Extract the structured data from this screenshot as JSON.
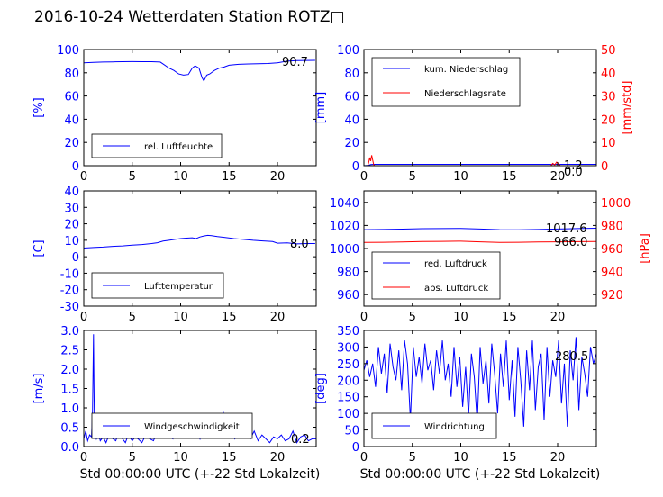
{
  "title": "2016-10-24 Wetterdaten Station ROTZ□",
  "colors": {
    "primary": "#0000ff",
    "secondary": "#ff0000",
    "axis": "#000000"
  },
  "xlabel": "Std 00:00:00 UTC (+-22 Std Lokalzeit)",
  "chart_data": [
    {
      "type": "line",
      "ylabel": "[%]",
      "xlim": [
        0,
        24
      ],
      "ylim": [
        0,
        100
      ],
      "xticks": [
        0,
        5,
        10,
        15,
        20
      ],
      "yticks": [
        0,
        20,
        40,
        60,
        80,
        100
      ],
      "grid": false,
      "legend": "lower-left",
      "last_value_label": "90.7",
      "series": [
        {
          "name": "rel. Luftfeuchte",
          "color": "#0000ff",
          "x": [
            0,
            1,
            2,
            3,
            4,
            5,
            6,
            7,
            7.9,
            8.3,
            8.8,
            9.3,
            9.8,
            10.3,
            10.8,
            11.2,
            11.5,
            11.9,
            12.2,
            12.4,
            12.7,
            13,
            13.5,
            14,
            14.5,
            15,
            16,
            17,
            18,
            19,
            20,
            21,
            22,
            23,
            23.9
          ],
          "values": [
            88.5,
            89,
            89.2,
            89.4,
            89.5,
            89.6,
            89.5,
            89.5,
            89.2,
            87,
            84,
            82,
            79,
            78,
            78.5,
            84,
            86,
            84,
            76,
            73,
            78,
            79,
            82,
            84,
            85,
            86.5,
            87.3,
            87.6,
            87.8,
            88,
            88.5,
            90,
            90.5,
            90.6,
            90.7
          ]
        }
      ]
    },
    {
      "type": "line",
      "ylabel": "[mm]",
      "ylabel_right": "[mm/std]",
      "xlim": [
        0,
        24
      ],
      "ylim": [
        0,
        100
      ],
      "ylim_right": [
        0,
        50
      ],
      "xticks": [
        0,
        5,
        10,
        15,
        20
      ],
      "yticks": [
        0,
        20,
        40,
        60,
        80,
        100
      ],
      "yticks_right": [
        0,
        10,
        20,
        30,
        40,
        50
      ],
      "grid": false,
      "legend": "upper-left",
      "last_value_labels": [
        "1.2",
        "0.0"
      ],
      "series": [
        {
          "name": "kum. Niederschlag",
          "color": "#0000ff",
          "axis": "left",
          "x": [
            0,
            0.5,
            0.7,
            1.0,
            5,
            10,
            15,
            19.5,
            20,
            24
          ],
          "values": [
            0,
            0.3,
            1.0,
            1.2,
            1.2,
            1.2,
            1.2,
            1.2,
            1.2,
            1.2
          ]
        },
        {
          "name": "Niederschlagsrate",
          "color": "#ff0000",
          "axis": "right",
          "x": [
            0,
            0.4,
            0.5,
            0.6,
            0.7,
            0.8,
            0.9,
            1.0,
            1.1,
            1.2,
            5,
            10,
            15,
            19.3,
            19.5,
            19.7,
            19.9,
            20.1,
            20.3,
            24
          ],
          "values": [
            0,
            0,
            1.5,
            3.5,
            2,
            4.5,
            2.5,
            0.5,
            0,
            0,
            0,
            0,
            0,
            0,
            1,
            0.4,
            1.5,
            0.6,
            0,
            0
          ]
        }
      ]
    },
    {
      "type": "line",
      "ylabel": "[C]",
      "xlim": [
        0,
        24
      ],
      "ylim": [
        -30,
        40
      ],
      "xticks": [
        0,
        5,
        10,
        15,
        20
      ],
      "yticks": [
        -30,
        -20,
        -10,
        0,
        10,
        20,
        30,
        40
      ],
      "grid": false,
      "legend": "lower-left",
      "last_value_label": "8.0",
      "series": [
        {
          "name": "Lufttemperatur",
          "color": "#0000ff",
          "x": [
            0,
            1,
            2,
            3,
            4,
            5,
            6,
            7,
            7.6,
            8.2,
            8.8,
            9.4,
            10,
            10.6,
            11.2,
            11.6,
            12,
            12.4,
            12.8,
            13.2,
            13.8,
            14.5,
            15.5,
            16.5,
            17.5,
            18.5,
            19.5,
            20,
            21,
            22,
            23,
            23.9
          ],
          "values": [
            5.3,
            5.6,
            5.9,
            6.3,
            6.6,
            7,
            7.4,
            8,
            8.5,
            9.5,
            10,
            10.5,
            11,
            11.3,
            11.5,
            11,
            12,
            12.6,
            13,
            12.8,
            12.3,
            11.8,
            11,
            10.5,
            10,
            9.6,
            9.2,
            8.2,
            8.4,
            7.8,
            8.0,
            8.0
          ]
        }
      ]
    },
    {
      "type": "line",
      "ylabel": "[hPa]",
      "xlim": [
        0,
        24
      ],
      "ylim": [
        950,
        1050
      ],
      "ylim_right": [
        910,
        1010
      ],
      "xticks": [
        0,
        5,
        10,
        15,
        20
      ],
      "yticks": [
        960,
        980,
        1000,
        1020,
        1040
      ],
      "yticks_right": [
        920,
        940,
        960,
        980,
        1000
      ],
      "grid": false,
      "legend": "lower-left",
      "last_value_labels": [
        "1017.6",
        "966.0"
      ],
      "series": [
        {
          "name": "red. Luftdruck",
          "color": "#0000ff",
          "axis": "left",
          "x": [
            0,
            2,
            4,
            6,
            8,
            10,
            12,
            14,
            16,
            18,
            20,
            22,
            24
          ],
          "values": [
            1016.3,
            1016.5,
            1016.8,
            1017.2,
            1017.3,
            1017.4,
            1016.9,
            1016.3,
            1016.2,
            1016.5,
            1016.9,
            1017.3,
            1017.6
          ]
        },
        {
          "name": "abs. Luftdruck",
          "color": "#ff0000",
          "axis": "right",
          "x": [
            0,
            2,
            4,
            6,
            8,
            10,
            12,
            14,
            16,
            18,
            20,
            22,
            24
          ],
          "values": [
            965.3,
            965.4,
            965.7,
            966.0,
            966.2,
            966.3,
            965.8,
            965.3,
            965.4,
            965.6,
            965.8,
            965.9,
            966.0
          ]
        }
      ]
    },
    {
      "type": "line",
      "ylabel": "[m/s]",
      "xlim": [
        0,
        24
      ],
      "ylim": [
        0,
        3.0
      ],
      "xticks": [
        0,
        5,
        10,
        15,
        20
      ],
      "yticks": [
        0.0,
        0.5,
        1.0,
        1.5,
        2.0,
        2.5,
        3.0
      ],
      "grid": false,
      "legend": "lower-center",
      "last_value_label": "0.2",
      "series": [
        {
          "name": "Windgeschwindigkeit",
          "color": "#0000ff",
          "x": [
            0,
            0.2,
            0.4,
            0.6,
            0.8,
            0.9,
            1.0,
            1.05,
            1.1,
            1.2,
            1.3,
            1.5,
            1.7,
            2,
            2.3,
            2.6,
            3,
            3.3,
            3.6,
            4,
            4.3,
            4.6,
            5,
            5.3,
            5.6,
            6,
            6.4,
            6.8,
            7.2,
            7.6,
            8,
            8.4,
            8.8,
            9.2,
            9.6,
            10,
            10.4,
            10.8,
            11.2,
            11.6,
            12,
            12.4,
            12.8,
            13.2,
            13.6,
            14,
            14.4,
            14.8,
            15.2,
            15.6,
            16,
            16.4,
            16.8,
            17.2,
            17.6,
            18,
            18.4,
            18.8,
            19.2,
            19.6,
            20,
            20.4,
            20.8,
            21.2,
            21.6,
            22,
            22.4,
            22.8,
            23.2,
            23.6,
            24
          ],
          "values": [
            0.2,
            0.4,
            0.15,
            0.3,
            0.25,
            0.9,
            2.9,
            1.6,
            0.6,
            0.3,
            0.2,
            0.35,
            0.15,
            0.25,
            0.1,
            0.3,
            0.2,
            0.15,
            0.35,
            0.2,
            0.1,
            0.3,
            0.15,
            0.25,
            0.2,
            0.1,
            0.3,
            0.2,
            0.15,
            0.4,
            0.25,
            0.5,
            0.3,
            0.2,
            0.6,
            0.35,
            0.25,
            0.7,
            0.3,
            0.5,
            0.2,
            0.6,
            0.35,
            0.8,
            0.4,
            0.25,
            0.9,
            0.3,
            0.5,
            0.2,
            0.35,
            0.7,
            0.3,
            0.2,
            0.4,
            0.15,
            0.3,
            0.2,
            0.1,
            0.25,
            0.2,
            0.3,
            0.15,
            0.2,
            0.4,
            0.1,
            0.25,
            0.3,
            0.15,
            0.2,
            0.2
          ]
        }
      ]
    },
    {
      "type": "line",
      "ylabel": "[deg]",
      "xlim": [
        0,
        24
      ],
      "ylim": [
        0,
        350
      ],
      "xticks": [
        0,
        5,
        10,
        15,
        20
      ],
      "yticks": [
        0,
        50,
        100,
        150,
        200,
        250,
        300,
        350
      ],
      "grid": false,
      "legend": "lower-left",
      "last_value_label": "280.5",
      "series": [
        {
          "name": "Windrichtung",
          "color": "#0000ff",
          "x": [
            0,
            0.3,
            0.6,
            0.9,
            1.2,
            1.5,
            1.8,
            2.1,
            2.4,
            2.7,
            3,
            3.3,
            3.6,
            3.9,
            4.2,
            4.5,
            4.8,
            5.1,
            5.4,
            5.7,
            6,
            6.3,
            6.6,
            6.9,
            7.2,
            7.5,
            7.8,
            8.1,
            8.4,
            8.7,
            9,
            9.3,
            9.6,
            9.9,
            10.2,
            10.5,
            10.8,
            11.1,
            11.4,
            11.7,
            12,
            12.3,
            12.6,
            12.9,
            13.2,
            13.5,
            13.8,
            14.1,
            14.4,
            14.7,
            15,
            15.3,
            15.6,
            15.9,
            16.2,
            16.5,
            16.8,
            17.1,
            17.4,
            17.7,
            18,
            18.3,
            18.6,
            18.9,
            19.2,
            19.5,
            19.8,
            20.1,
            20.4,
            20.7,
            21,
            21.3,
            21.6,
            21.9,
            22.2,
            22.5,
            22.8,
            23.1,
            23.4,
            23.7,
            24
          ],
          "values": [
            230,
            260,
            210,
            250,
            180,
            300,
            220,
            280,
            160,
            310,
            240,
            200,
            290,
            170,
            320,
            250,
            80,
            300,
            210,
            270,
            190,
            310,
            230,
            260,
            170,
            290,
            220,
            320,
            200,
            250,
            150,
            300,
            180,
            270,
            120,
            240,
            90,
            280,
            210,
            70,
            300,
            190,
            260,
            130,
            310,
            220,
            100,
            280,
            180,
            320,
            140,
            260,
            90,
            300,
            200,
            60,
            290,
            170,
            320,
            110,
            240,
            280,
            80,
            300,
            150,
            260,
            210,
            320,
            130,
            250,
            60,
            290,
            200,
            330,
            110,
            270,
            220,
            150,
            300,
            250,
            280
          ]
        }
      ]
    }
  ]
}
